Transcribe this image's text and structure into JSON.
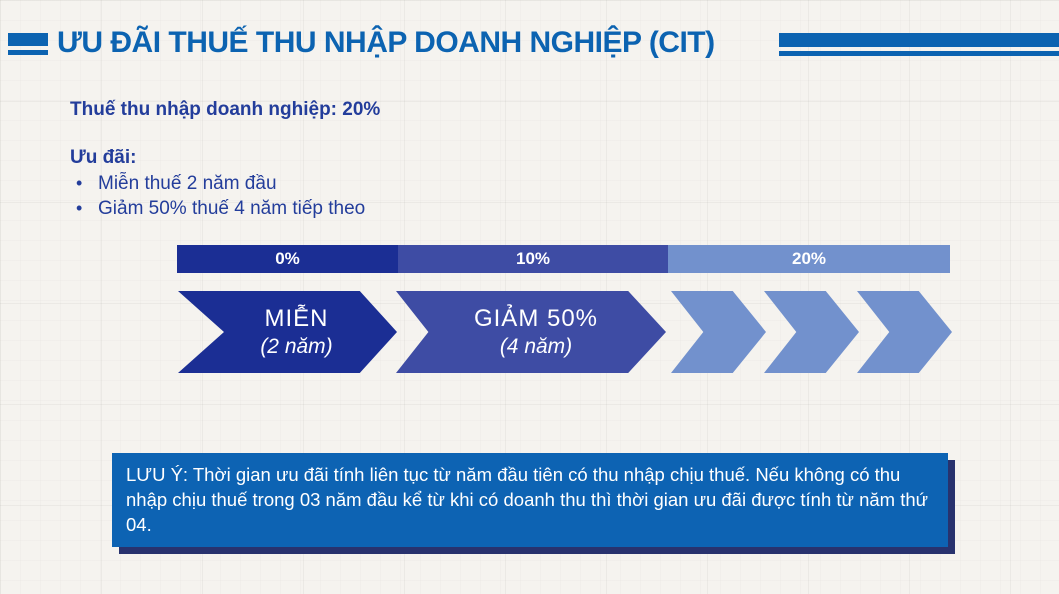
{
  "colors": {
    "background": "#F5F3EF",
    "title_blue": "#0C63B1",
    "body_navy": "#233D9B",
    "segment_dark_blue": "#1B2E94",
    "segment_medium_blue": "#3E4CA4",
    "segment_light_blue": "#7291CD",
    "note_background": "#0D63B3",
    "note_shadow": "#28326E",
    "text_on_blue": "#FFFFFF"
  },
  "header": {
    "title": "ƯU ĐÃI THUẾ THU NHẬP DOANH NGHIỆP (CIT)"
  },
  "intro": {
    "tax_line": "Thuế thu nhập doanh nghiệp: 20%",
    "incentives_label": "Ưu đãi:",
    "bullets": [
      "Miễn thuế 2 năm đầu",
      "Giảm 50% thuế 4 năm tiếp theo"
    ]
  },
  "timeline": {
    "rate_segments": [
      {
        "label": "0%",
        "color": "#1B2E94"
      },
      {
        "label": "10%",
        "color": "#3E4CA4"
      },
      {
        "label": "20%",
        "color": "#7291CD"
      }
    ],
    "phases": [
      {
        "title": "MIỄN",
        "subtitle": "(2 năm)",
        "color": "#1B2E94"
      },
      {
        "title": "GIẢM 50%",
        "subtitle": "(4 năm)",
        "color": "#3E4CA4"
      }
    ],
    "chevron_count": 3
  },
  "note": {
    "text": "LƯU Ý: Thời gian ưu đãi tính liên tục từ năm đầu tiên có thu nhập chịu thuế. Nếu không có thu nhập chịu thuế trong 03 năm đầu kể từ khi có doanh thu thì thời gian ưu đãi được tính từ năm thứ 04."
  }
}
